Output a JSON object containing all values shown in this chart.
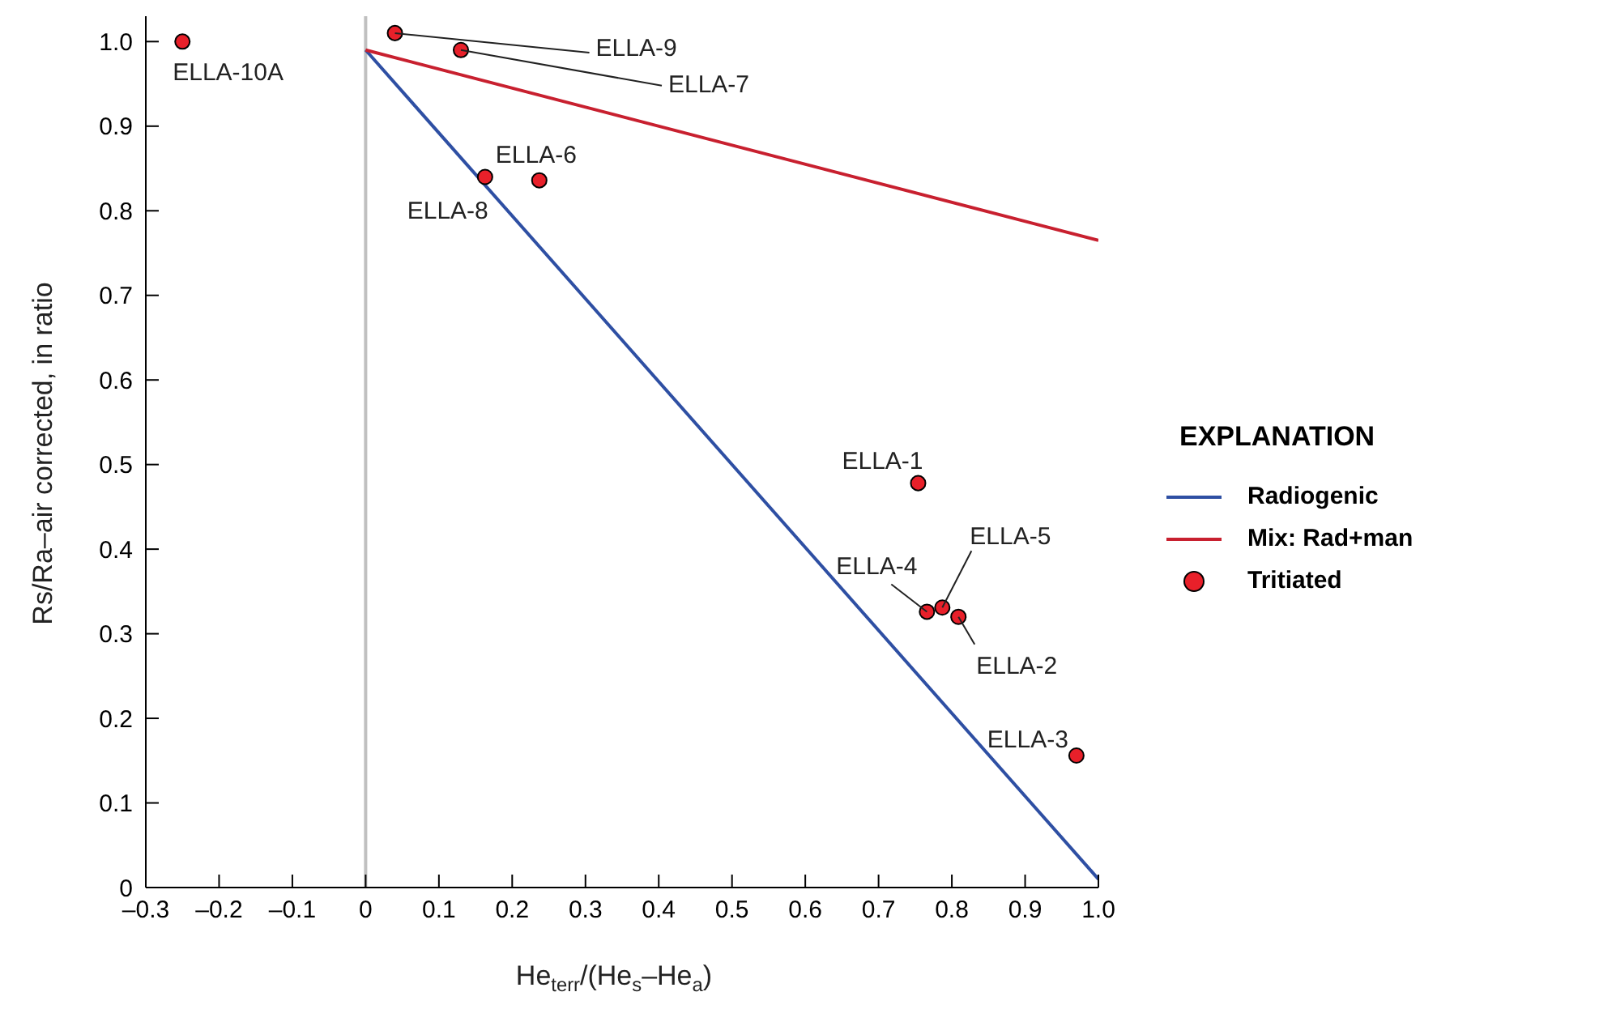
{
  "chart_data": {
    "type": "scatter",
    "xlabel": "He$_{terr}$/(He$_{s}$–He$_{a}$)",
    "ylabel": "Rs/Ra–air corrected, in ratio",
    "legend_title": "EXPLANATION",
    "xlim": [
      -0.3,
      1.0
    ],
    "xticks": [
      {
        "value": -0.3,
        "label": "–0.3"
      },
      {
        "value": -0.2,
        "label": "–0.2"
      },
      {
        "value": -0.1,
        "label": "–0.1"
      },
      0,
      0.1,
      0.2,
      0.3,
      0.4,
      0.5,
      0.6,
      0.7,
      0.8,
      0.9,
      {
        "value": 1.0,
        "label": "1.0"
      }
    ],
    "ylim": [
      0,
      1.03
    ],
    "yticks": [
      0,
      0.1,
      0.2,
      0.3,
      0.4,
      0.5,
      0.6,
      0.7,
      0.8,
      0.9,
      {
        "value": 1.0,
        "label": "1.0"
      }
    ],
    "series": [
      {
        "name": "Radiogenic",
        "type": "line",
        "marker": "none",
        "color": "#2e4fa3",
        "x": [
          0,
          1
        ],
        "values": [
          0.99,
          0.01
        ]
      },
      {
        "name": "Mix: Rad+man",
        "type": "line",
        "marker": "none",
        "color": "#c8202f",
        "x": [
          0,
          1
        ],
        "values": [
          0.99,
          0.765
        ]
      },
      {
        "name": "Tritiated",
        "marker": "circle",
        "color": "#e8202a",
        "x": [
          -0.25,
          0.04,
          0.13,
          0.163,
          0.237,
          0.754,
          0.766,
          0.787,
          0.809,
          0.97
        ],
        "values": [
          1.0,
          1.01,
          0.99,
          0.84,
          0.836,
          0.478,
          0.326,
          0.331,
          0.32,
          0.156
        ]
      }
    ],
    "annotations": [
      {
        "text": "ELLA-10A",
        "x": -0.25,
        "y": 1.0
      },
      {
        "text": "ELLA-9",
        "x": 0.04,
        "y": 1.01
      },
      {
        "text": "ELLA-7",
        "x": 0.13,
        "y": 0.99
      },
      {
        "text": "ELLA-8",
        "x": 0.163,
        "y": 0.84
      },
      {
        "text": "ELLA-6",
        "x": 0.237,
        "y": 0.836
      },
      {
        "text": "ELLA-1",
        "x": 0.754,
        "y": 0.478
      },
      {
        "text": "ELLA-4",
        "x": 0.766,
        "y": 0.326
      },
      {
        "text": "ELLA-5",
        "x": 0.787,
        "y": 0.331
      },
      {
        "text": "ELLA-2",
        "x": 0.809,
        "y": 0.32
      },
      {
        "text": "ELLA-3",
        "x": 0.97,
        "y": 0.156
      }
    ],
    "ref_lines": [
      {
        "axis": "x",
        "value": 0,
        "color": "#c0c0c0"
      }
    ],
    "legend": "right",
    "grid": false,
    "line_style": "solid"
  }
}
